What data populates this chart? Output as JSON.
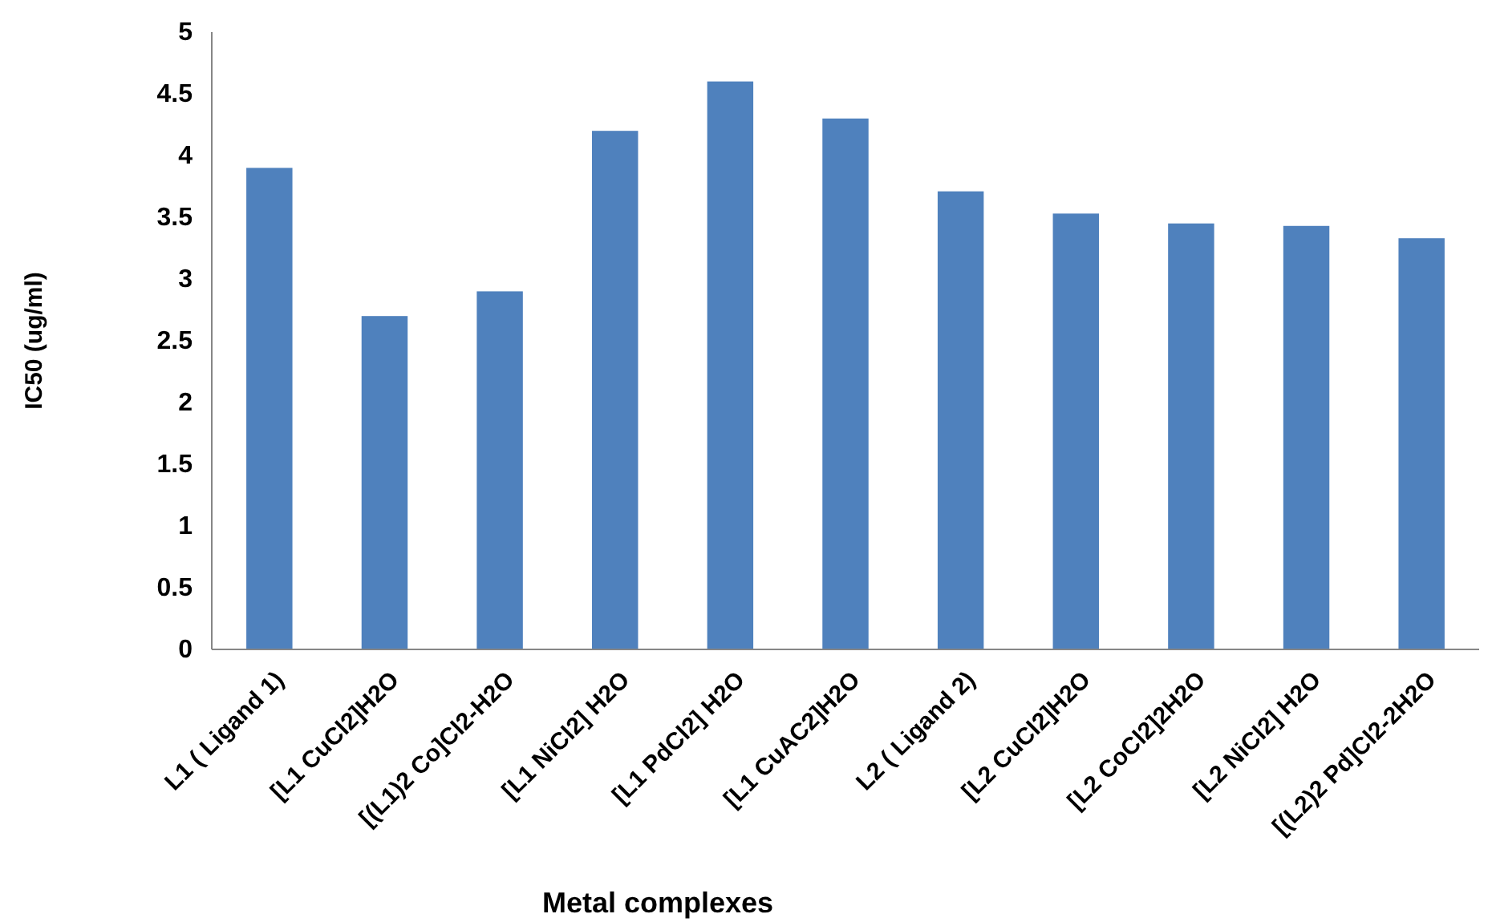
{
  "chart_data": {
    "type": "bar",
    "xlabel": "Metal complexes",
    "ylabel": "IC50 (ug/ml)",
    "categories": [
      "L1 ( Ligand 1)",
      "[L1 CuCl2]H2O",
      "[(L1)2 Co]Cl2-H2O",
      "[L1 NiCl2] H2O",
      "[L1 PdCl2] H2O",
      "[L1 CuAC2]H2O",
      "L2 ( Ligand 2)",
      "[L2 CuCl2]H2O",
      "[L2 CoCl2]2H2O",
      "[L2 NiCl2] H2O",
      "[(L2)2 Pd]Cl2-2H2O"
    ],
    "values": [
      3.9,
      2.7,
      2.9,
      4.2,
      4.6,
      4.3,
      3.71,
      3.53,
      3.45,
      3.43,
      3.33
    ],
    "color": "#4f81bd",
    "ylim": [
      0,
      5
    ],
    "yticks": [
      0,
      0.5,
      1,
      1.5,
      2,
      2.5,
      3,
      3.5,
      4,
      4.5,
      5
    ],
    "grid": false
  }
}
